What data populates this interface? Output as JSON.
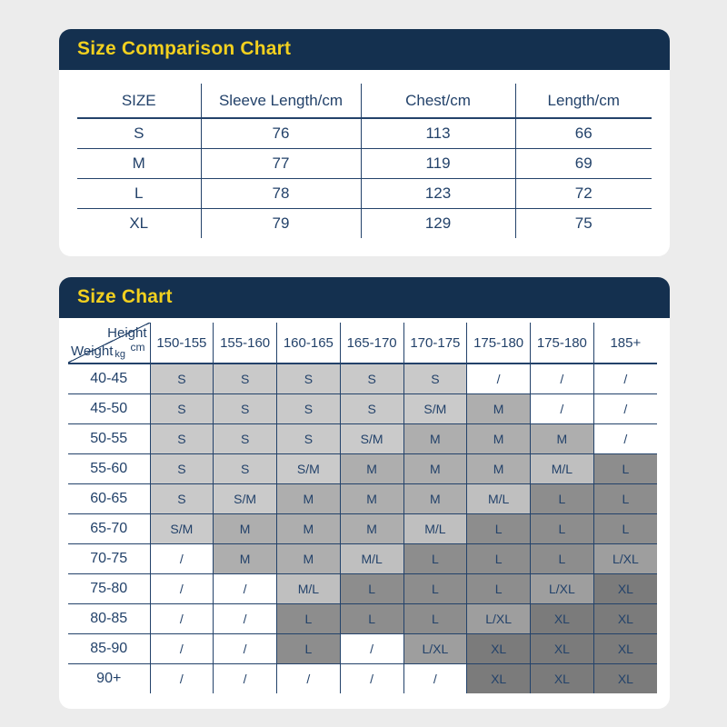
{
  "colors": {
    "page_background": "#ececec",
    "card_background": "#ffffff",
    "header_navy": "#14304f",
    "title_yellow": "#f2d01f",
    "text_navy": "#23426a",
    "line_navy": "#23426a",
    "shades": {
      "S": "#c9c9c9",
      "S/M": "#cacaca",
      "M": "#aeaeae",
      "M/L": "#bfbfbf",
      "L": "#8d8d8d",
      "L/XL": "#9e9e9e",
      "XL": "#7b7b7b",
      "/": "#ffffff"
    }
  },
  "size_comparison": {
    "title": "Size Comparison Chart",
    "columns": [
      "SIZE",
      "Sleeve Length/cm",
      "Chest/cm",
      "Length/cm"
    ],
    "rows": [
      [
        "S",
        "76",
        "113",
        "66"
      ],
      [
        "M",
        "77",
        "119",
        "69"
      ],
      [
        "L",
        "78",
        "123",
        "72"
      ],
      [
        "XL",
        "79",
        "129",
        "75"
      ]
    ]
  },
  "size_chart": {
    "title": "Size Chart",
    "corner": {
      "top_label": "Height",
      "top_unit": "cm",
      "bottom_label": "Weight",
      "bottom_unit": "kg"
    },
    "height_columns": [
      "150-155",
      "155-160",
      "160-165",
      "165-170",
      "170-175",
      "175-180",
      "175-180",
      "185+"
    ],
    "rows": [
      {
        "weight": "40-45",
        "cells": [
          "S",
          "S",
          "S",
          "S",
          "S",
          "/",
          "/",
          "/"
        ]
      },
      {
        "weight": "45-50",
        "cells": [
          "S",
          "S",
          "S",
          "S",
          "S/M",
          "M",
          "/",
          "/"
        ]
      },
      {
        "weight": "50-55",
        "cells": [
          "S",
          "S",
          "S",
          "S/M",
          "M",
          "M",
          "M",
          "/"
        ]
      },
      {
        "weight": "55-60",
        "cells": [
          "S",
          "S",
          "S/M",
          "M",
          "M",
          "M",
          "M/L",
          "L"
        ]
      },
      {
        "weight": "60-65",
        "cells": [
          "S",
          "S/M",
          "M",
          "M",
          "M",
          "M/L",
          "L",
          "L"
        ]
      },
      {
        "weight": "65-70",
        "cells": [
          "S/M",
          "M",
          "M",
          "M",
          "M/L",
          "L",
          "L",
          "L"
        ]
      },
      {
        "weight": "70-75",
        "cells": [
          "/",
          "M",
          "M",
          "M/L",
          "L",
          "L",
          "L",
          "L/XL"
        ]
      },
      {
        "weight": "75-80",
        "cells": [
          "/",
          "/",
          "M/L",
          "L",
          "L",
          "L",
          "L/XL",
          "XL"
        ]
      },
      {
        "weight": "80-85",
        "cells": [
          "/",
          "/",
          "L",
          "L",
          "L",
          "L/XL",
          "XL",
          "XL"
        ]
      },
      {
        "weight": "85-90",
        "cells": [
          "/",
          "/",
          "L",
          "/",
          "L/XL",
          "XL",
          "XL",
          "XL"
        ]
      },
      {
        "weight": "90+",
        "cells": [
          "/",
          "/",
          "/",
          "/",
          "/",
          "XL",
          "XL",
          "XL"
        ]
      }
    ]
  }
}
